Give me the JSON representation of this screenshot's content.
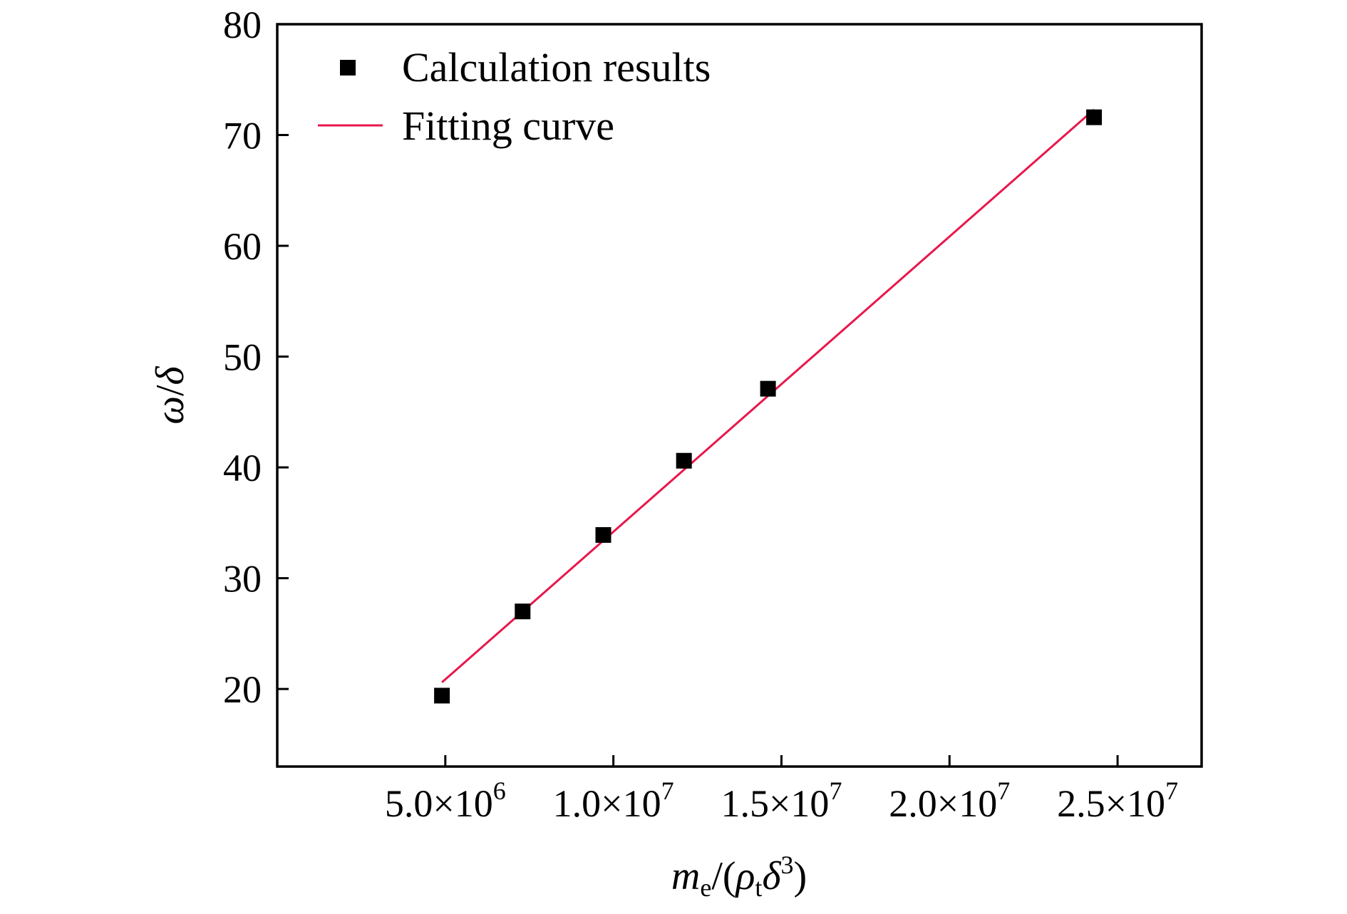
{
  "chart_data": {
    "type": "scatter",
    "xlabel": {
      "base": "m",
      "base_sub": "e",
      "sep": "/(",
      "rho": "ρ",
      "rho_sub": "t",
      "delta": "δ",
      "delta_sup": "3",
      "close": ")"
    },
    "ylabel": {
      "omega": "ω",
      "slash": "/",
      "delta": "δ"
    },
    "xlim": [
      0,
      27500000
    ],
    "ylim": [
      13,
      80
    ],
    "x_ticks": [
      {
        "value": 5000000,
        "mantissa": "5.0×10",
        "exponent": "6"
      },
      {
        "value": 10000000,
        "mantissa": "1.0×10",
        "exponent": "7"
      },
      {
        "value": 15000000,
        "mantissa": "1.5×10",
        "exponent": "7"
      },
      {
        "value": 20000000,
        "mantissa": "2.0×10",
        "exponent": "7"
      },
      {
        "value": 25000000,
        "mantissa": "2.5×10",
        "exponent": "7"
      }
    ],
    "y_ticks": [
      20,
      30,
      40,
      50,
      60,
      70,
      80
    ],
    "legend_position": "top-left",
    "series": [
      {
        "name": "Calculation results",
        "type": "scatter",
        "marker": "square",
        "color": "#000000",
        "x": [
          4900000,
          7300000,
          9700000,
          12100000,
          14600000,
          24300000
        ],
        "y": [
          19.4,
          27.0,
          33.9,
          40.6,
          47.1,
          71.6
        ]
      },
      {
        "name": "Fitting curve",
        "type": "line",
        "color": "#e8174b",
        "x": [
          4900000,
          24300000
        ],
        "y": [
          20.6,
          72.3
        ]
      }
    ]
  }
}
